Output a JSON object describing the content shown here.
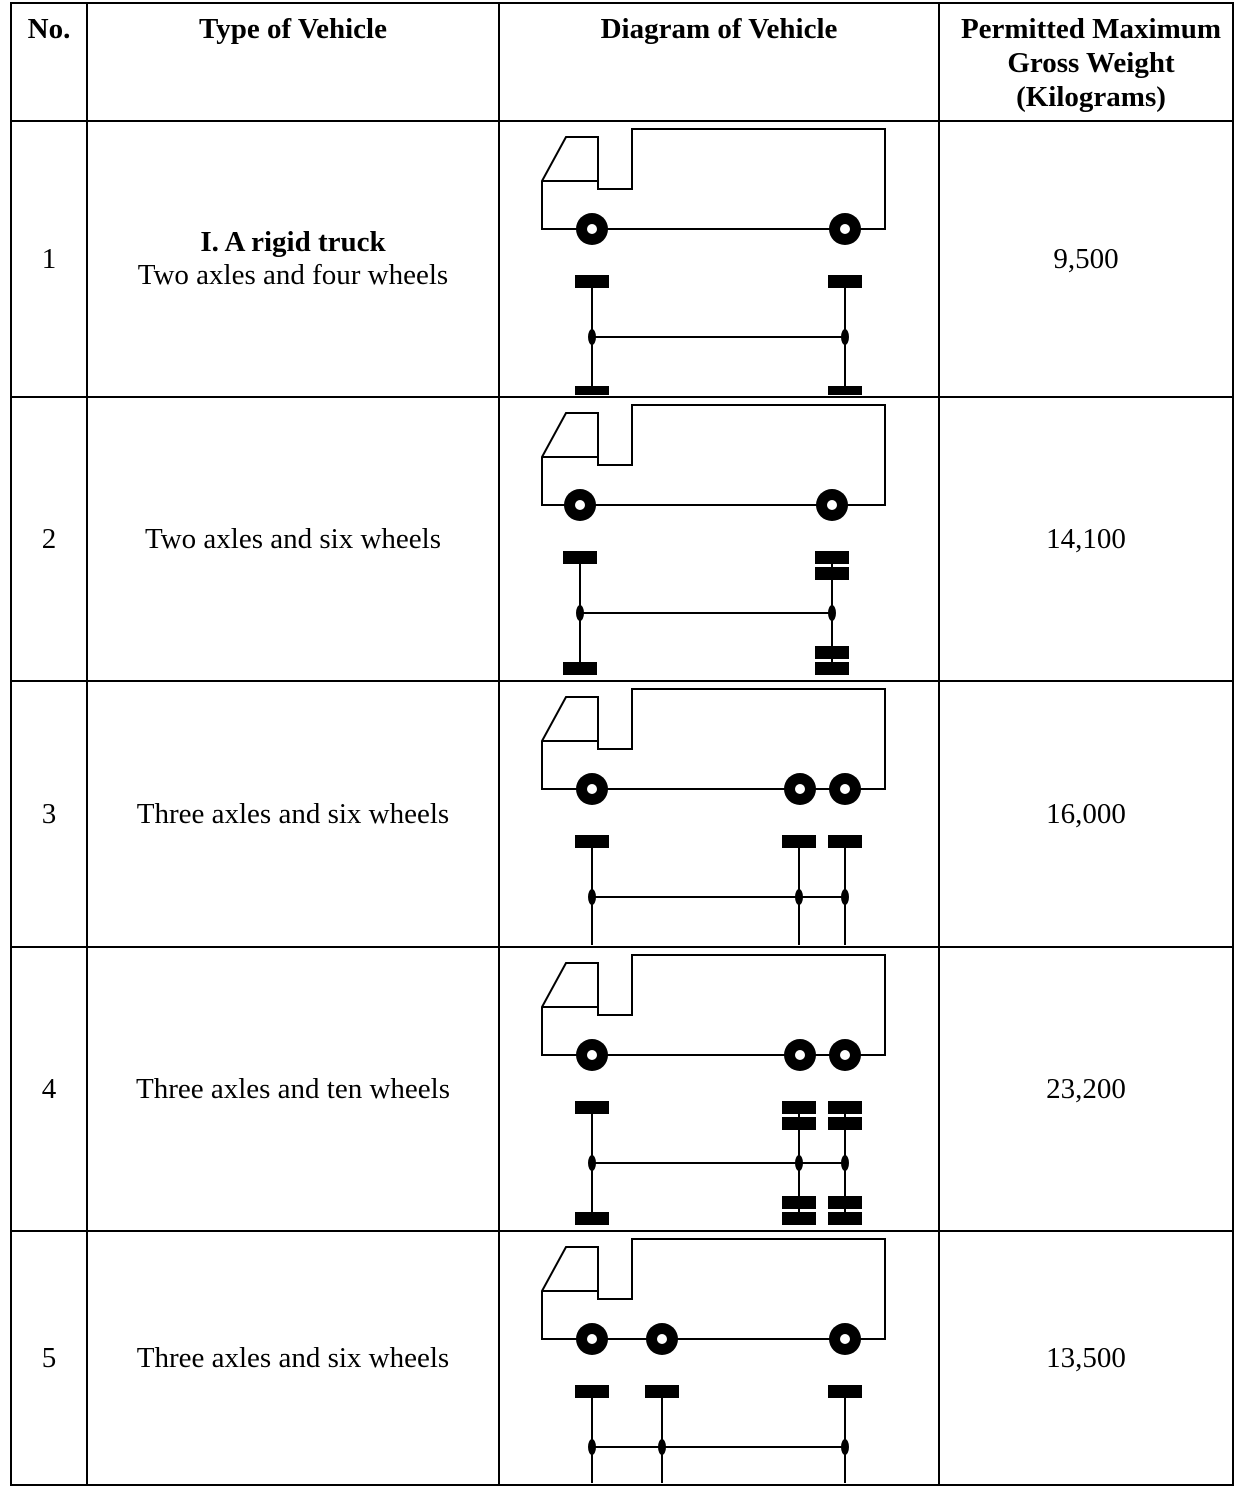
{
  "header": {
    "no": "No.",
    "type": "Type of Vehicle",
    "diagram": "Diagram of Vehicle",
    "weight": "Permitted Maximum Gross Weight (Kilograms)"
  },
  "rows": [
    {
      "no": "1",
      "category": "I.  A rigid truck",
      "type": "Two axles and four wheels",
      "weight": "9,500"
    },
    {
      "no": "2",
      "type": "Two axles and six wheels",
      "weight": "14,100"
    },
    {
      "no": "3",
      "type": "Three axles and six wheels",
      "weight": "16,000"
    },
    {
      "no": "4",
      "type": "Three axles and ten wheels",
      "weight": "23,200"
    },
    {
      "no": "5",
      "type": "Three axles and six wheels",
      "weight": "13,500"
    }
  ]
}
